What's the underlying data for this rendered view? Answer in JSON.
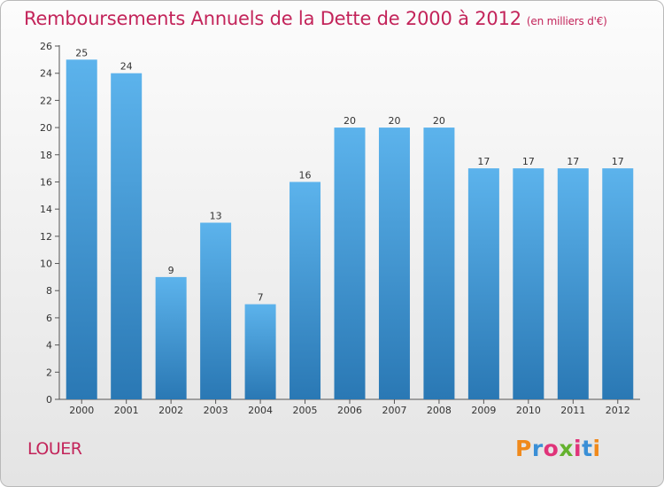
{
  "title": "Remboursements Annuels de la Dette de 2000 à 2012",
  "subtitle": "(en milliers d'€)",
  "commune": "LOUER",
  "logo": {
    "text": "Proxiti",
    "letter_colors": [
      "#f08a1c",
      "#3a8fd6",
      "#e0347a",
      "#64b22e",
      "#e0347a",
      "#3a8fd6",
      "#f08a1c"
    ]
  },
  "colors": {
    "title": "#c3245a",
    "bar_top": "#5cb3ec",
    "bar_bottom": "#2a78b4"
  },
  "chart_data": {
    "type": "bar",
    "title": "Remboursements Annuels de la Dette de 2000 à 2012",
    "categories": [
      "2000",
      "2001",
      "2002",
      "2003",
      "2004",
      "2005",
      "2006",
      "2007",
      "2008",
      "2009",
      "2010",
      "2011",
      "2012"
    ],
    "values": [
      25,
      24,
      9,
      13,
      7,
      16,
      20,
      20,
      20,
      17,
      17,
      17,
      17
    ],
    "ylim": [
      0,
      26
    ],
    "yticks": [
      0,
      2,
      4,
      6,
      8,
      10,
      12,
      14,
      16,
      18,
      20,
      22,
      24,
      26
    ],
    "grid": false,
    "data_labels": true
  }
}
